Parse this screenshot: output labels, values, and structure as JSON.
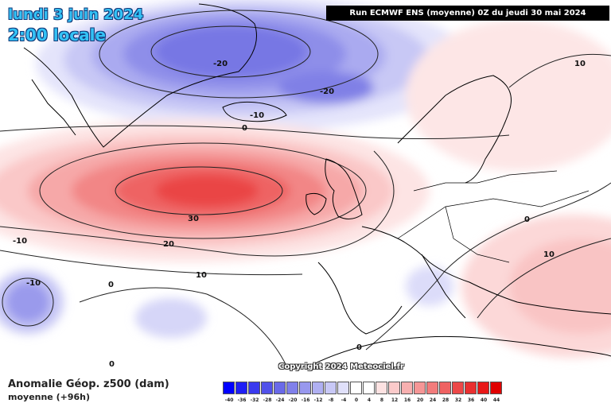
{
  "header": {
    "date_line": "lundi 3 juin 2024",
    "time_line": "2:00 locale",
    "run_info": "Run ECMWF ENS (moyenne) 0Z du jeudi 30 mai 2024",
    "copyright": "Copyright 2024 Meteociel.fr"
  },
  "footer": {
    "variable_title": "Anomalie Géop. z500 (dam)",
    "variable_sub": "moyenne   (+96h)"
  },
  "legend": {
    "ticks": [
      "-40",
      "-36",
      "-32",
      "-28",
      "-24",
      "-20",
      "-16",
      "-12",
      "-8",
      "-4",
      "0",
      "4",
      "8",
      "12",
      "16",
      "20",
      "24",
      "28",
      "32",
      "36",
      "40",
      "44"
    ],
    "colors": [
      "#0000ff",
      "#1f1ff5",
      "#3a3aee",
      "#5252ea",
      "#6a6ae8",
      "#8080ea",
      "#9898ee",
      "#b0b0f2",
      "#c8c8f6",
      "#e0e0fa",
      "#ffffff",
      "#ffffff",
      "#fde2e2",
      "#fbcaca",
      "#f8b0b0",
      "#f59696",
      "#f27c7c",
      "#ef6262",
      "#ec4848",
      "#e93030",
      "#e81818",
      "#e00000"
    ]
  },
  "contour_labels": [
    {
      "text": "-20"
    },
    {
      "text": "-20"
    },
    {
      "text": "-10"
    },
    {
      "text": "0"
    },
    {
      "text": "30"
    },
    {
      "text": "20"
    },
    {
      "text": "10"
    },
    {
      "text": "-10"
    },
    {
      "text": "-10"
    },
    {
      "text": "0"
    },
    {
      "text": "0"
    },
    {
      "text": "0"
    },
    {
      "text": "10"
    },
    {
      "text": "10"
    },
    {
      "text": "0"
    }
  ]
}
